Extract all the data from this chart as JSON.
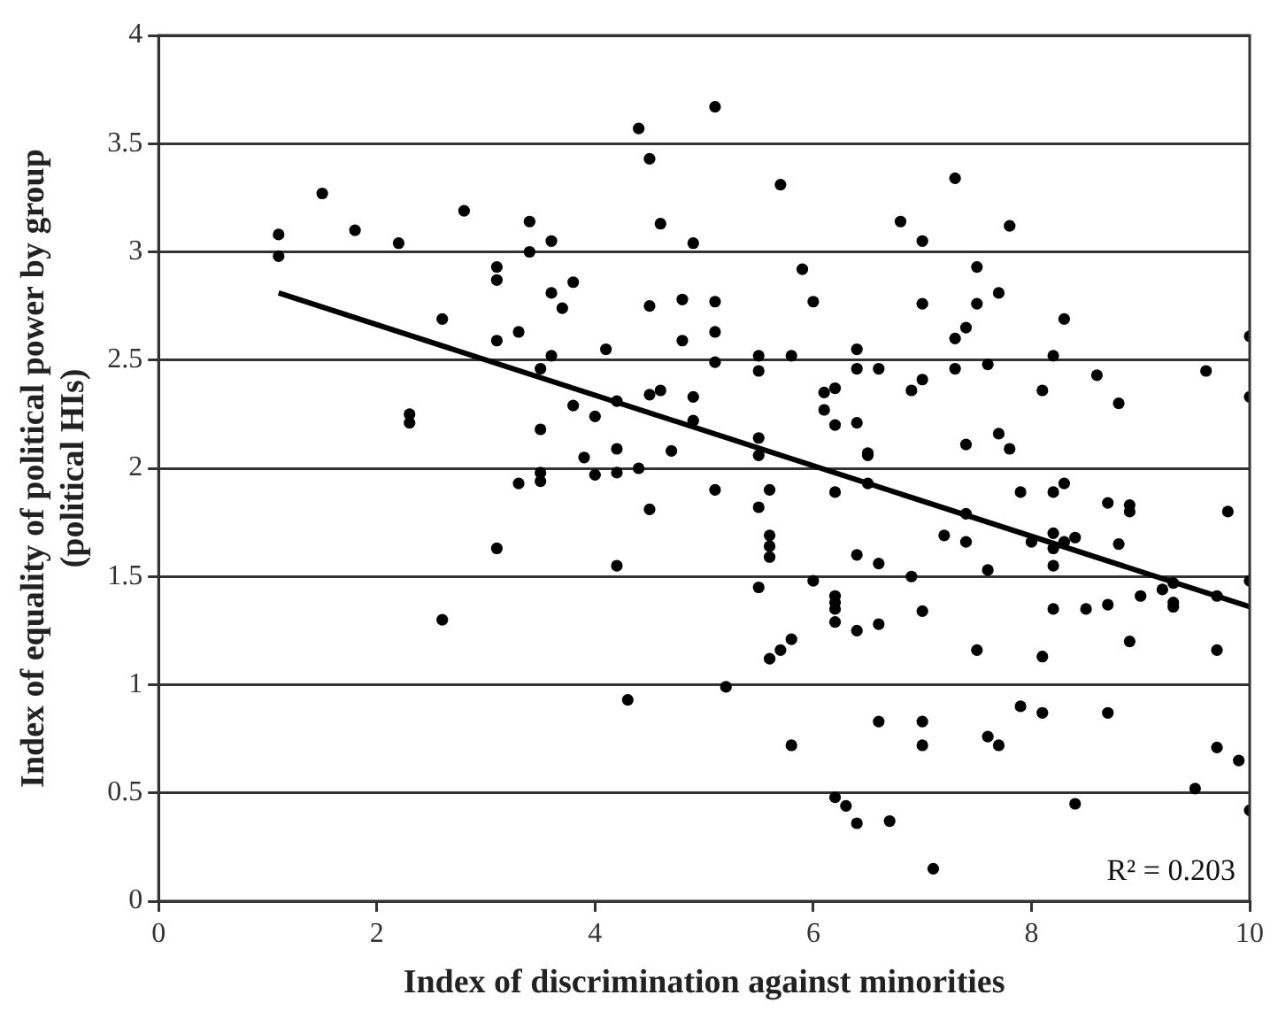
{
  "chart_data": {
    "type": "scatter",
    "xlabel": "Index of discrimination against minorities",
    "ylabel": "Index of equality of political power by group (political HIs)",
    "xlim": [
      0,
      10
    ],
    "xticks": [
      0,
      2,
      4,
      6,
      8,
      10
    ],
    "ylim": [
      0,
      4
    ],
    "yticks": [
      0,
      0.5,
      1,
      1.5,
      2,
      2.5,
      3,
      3.5,
      4
    ],
    "grid": "y",
    "legend": false,
    "marker": "circle",
    "annotations": [
      "R² = 0.203"
    ],
    "series": [
      {
        "color": "#000000",
        "x": [
          1.1,
          1.1,
          1.5,
          1.8,
          2.2,
          2.3,
          2.3,
          2.6,
          2.6,
          2.8,
          3.1,
          3.1,
          3.1,
          3.1,
          3.3,
          3.3,
          3.4,
          3.4,
          3.5,
          3.5,
          3.5,
          3.5,
          3.6,
          3.6,
          3.6,
          3.7,
          3.8,
          3.8,
          3.9,
          4.0,
          4.0,
          4.1,
          4.2,
          4.2,
          4.2,
          4.2,
          4.3,
          4.4,
          4.4,
          4.5,
          4.5,
          4.5,
          4.5,
          4.6,
          4.6,
          4.7,
          4.8,
          4.8,
          4.9,
          4.9,
          4.9,
          5.1,
          5.1,
          5.1,
          5.1,
          5.1,
          5.2,
          5.5,
          5.5,
          5.5,
          5.5,
          5.5,
          5.5,
          5.6,
          5.6,
          5.6,
          5.6,
          5.6,
          5.7,
          5.7,
          5.8,
          5.8,
          5.8,
          5.9,
          6.0,
          6.0,
          6.1,
          6.1,
          6.2,
          6.2,
          6.2,
          6.2,
          6.2,
          6.2,
          6.2,
          6.2,
          6.3,
          6.4,
          6.4,
          6.4,
          6.4,
          6.4,
          6.4,
          6.5,
          6.5,
          6.5,
          6.6,
          6.6,
          6.6,
          6.6,
          6.7,
          6.8,
          6.9,
          6.9,
          7.0,
          7.0,
          7.0,
          7.0,
          7.0,
          7.0,
          7.1,
          7.2,
          7.3,
          7.3,
          7.3,
          7.4,
          7.4,
          7.4,
          7.4,
          7.5,
          7.5,
          7.5,
          7.6,
          7.6,
          7.6,
          7.7,
          7.7,
          7.7,
          7.8,
          7.8,
          7.9,
          7.9,
          8.0,
          8.1,
          8.1,
          8.1,
          8.2,
          8.2,
          8.2,
          8.2,
          8.2,
          8.2,
          8.3,
          8.3,
          8.3,
          8.4,
          8.4,
          8.5,
          8.6,
          8.7,
          8.7,
          8.7,
          8.8,
          8.8,
          8.9,
          8.9,
          8.9,
          9.0,
          9.2,
          9.3,
          9.3,
          9.3,
          9.5,
          9.6,
          9.7,
          9.7,
          9.7,
          9.8,
          9.9,
          10.0,
          10.0,
          10.0,
          10.0
        ],
        "values": [
          3.08,
          2.98,
          3.27,
          3.1,
          3.04,
          2.25,
          2.21,
          1.3,
          2.69,
          3.19,
          2.93,
          2.87,
          2.59,
          1.63,
          2.63,
          1.93,
          3.14,
          3.0,
          2.46,
          2.18,
          1.98,
          1.94,
          3.05,
          2.81,
          2.52,
          2.74,
          2.86,
          2.29,
          2.05,
          2.24,
          1.97,
          2.55,
          2.31,
          2.09,
          1.98,
          1.55,
          0.93,
          3.57,
          2.0,
          3.43,
          2.75,
          2.34,
          1.81,
          3.13,
          2.36,
          2.08,
          2.78,
          2.59,
          3.04,
          2.33,
          2.22,
          3.67,
          2.77,
          2.63,
          2.49,
          1.9,
          0.99,
          2.52,
          2.45,
          2.14,
          2.06,
          1.45,
          1.82,
          1.69,
          1.64,
          1.59,
          1.9,
          1.12,
          3.31,
          1.16,
          2.52,
          1.21,
          0.72,
          2.92,
          2.77,
          1.48,
          2.35,
          2.27,
          2.37,
          2.2,
          1.89,
          1.41,
          1.38,
          1.35,
          1.29,
          0.48,
          0.44,
          2.55,
          2.46,
          2.21,
          1.6,
          1.25,
          0.36,
          2.06,
          2.07,
          1.93,
          2.46,
          1.56,
          1.28,
          0.83,
          0.37,
          3.14,
          2.36,
          1.5,
          3.05,
          2.76,
          2.41,
          1.34,
          0.83,
          0.72,
          0.15,
          1.69,
          3.34,
          2.6,
          2.46,
          2.65,
          2.11,
          1.79,
          1.66,
          2.93,
          2.76,
          1.16,
          2.48,
          1.53,
          0.76,
          2.81,
          2.16,
          0.72,
          3.12,
          2.09,
          1.89,
          0.9,
          1.66,
          2.36,
          1.13,
          0.87,
          2.52,
          1.89,
          1.7,
          1.63,
          1.55,
          1.35,
          2.69,
          1.93,
          1.66,
          1.68,
          0.45,
          1.35,
          2.43,
          1.84,
          1.37,
          0.87,
          2.3,
          1.65,
          1.83,
          1.8,
          1.2,
          1.41,
          1.44,
          1.47,
          1.38,
          1.36,
          0.52,
          2.45,
          1.41,
          1.16,
          0.71,
          1.8,
          0.65,
          2.61,
          2.33,
          1.48,
          0.42
        ]
      },
      {
        "type": "line",
        "color": "#000000",
        "x": [
          1.1,
          10
        ],
        "values": [
          2.81,
          1.36
        ],
        "marker": "none",
        "line_style": "solid"
      }
    ]
  }
}
